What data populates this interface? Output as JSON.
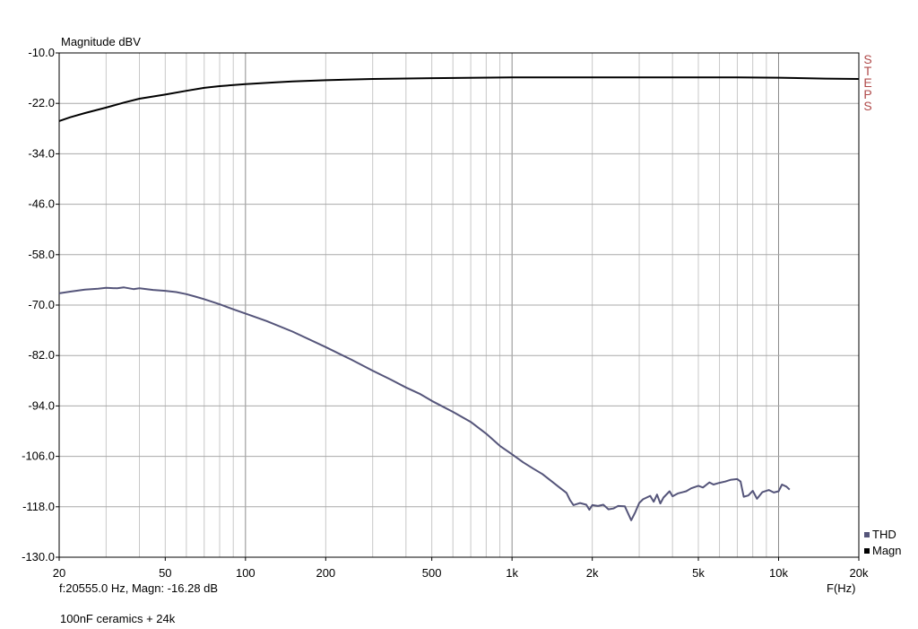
{
  "chart_data": {
    "type": "line",
    "title": "Magnitude dBV",
    "xlabel": "F(Hz)",
    "ylabel": "",
    "x_scale": "log",
    "xlim": [
      20,
      20000
    ],
    "ylim": [
      -130,
      -10
    ],
    "y_ticks": [
      "-10.0",
      "-22.0",
      "-34.0",
      "-46.0",
      "-58.0",
      "-70.0",
      "-82.0",
      "-94.0",
      "-106.0",
      "-118.0",
      "-130.0"
    ],
    "x_ticks": [
      {
        "value": 20,
        "label": "20"
      },
      {
        "value": 50,
        "label": "50"
      },
      {
        "value": 100,
        "label": "100"
      },
      {
        "value": 200,
        "label": "200"
      },
      {
        "value": 500,
        "label": "500"
      },
      {
        "value": 1000,
        "label": "1k"
      },
      {
        "value": 2000,
        "label": "2k"
      },
      {
        "value": 5000,
        "label": "5k"
      },
      {
        "value": 10000,
        "label": "10k"
      },
      {
        "value": 20000,
        "label": "20k"
      }
    ],
    "grid": true,
    "legend_position": "bottom-right",
    "series": [
      {
        "name": "THD",
        "color": "#55557a",
        "points": [
          [
            20,
            -67.2
          ],
          [
            22,
            -66.8
          ],
          [
            25,
            -66.3
          ],
          [
            28,
            -66.1
          ],
          [
            30,
            -65.9
          ],
          [
            33,
            -66.0
          ],
          [
            35,
            -65.8
          ],
          [
            38,
            -66.2
          ],
          [
            40,
            -66.0
          ],
          [
            45,
            -66.4
          ],
          [
            50,
            -66.6
          ],
          [
            55,
            -66.9
          ],
          [
            60,
            -67.4
          ],
          [
            65,
            -68.0
          ],
          [
            70,
            -68.6
          ],
          [
            80,
            -69.8
          ],
          [
            90,
            -71.0
          ],
          [
            100,
            -72.0
          ],
          [
            120,
            -73.8
          ],
          [
            150,
            -76.3
          ],
          [
            200,
            -80.0
          ],
          [
            250,
            -83.0
          ],
          [
            300,
            -85.6
          ],
          [
            350,
            -87.7
          ],
          [
            400,
            -89.6
          ],
          [
            450,
            -91.1
          ],
          [
            500,
            -92.8
          ],
          [
            600,
            -95.4
          ],
          [
            700,
            -97.8
          ],
          [
            800,
            -100.6
          ],
          [
            900,
            -103.5
          ],
          [
            1000,
            -105.5
          ],
          [
            1100,
            -107.4
          ],
          [
            1200,
            -108.9
          ],
          [
            1300,
            -110.2
          ],
          [
            1400,
            -111.8
          ],
          [
            1500,
            -113.3
          ],
          [
            1600,
            -114.7
          ],
          [
            1650,
            -116.4
          ],
          [
            1700,
            -117.6
          ],
          [
            1800,
            -117.1
          ],
          [
            1900,
            -117.5
          ],
          [
            1950,
            -118.7
          ],
          [
            2000,
            -117.6
          ],
          [
            2100,
            -117.8
          ],
          [
            2200,
            -117.5
          ],
          [
            2300,
            -118.6
          ],
          [
            2400,
            -118.4
          ],
          [
            2500,
            -117.8
          ],
          [
            2650,
            -117.9
          ],
          [
            2800,
            -121.2
          ],
          [
            2900,
            -119.3
          ],
          [
            3000,
            -117.1
          ],
          [
            3100,
            -116.2
          ],
          [
            3300,
            -115.4
          ],
          [
            3400,
            -116.8
          ],
          [
            3500,
            -115.1
          ],
          [
            3600,
            -117.2
          ],
          [
            3700,
            -115.8
          ],
          [
            3900,
            -114.3
          ],
          [
            4000,
            -115.5
          ],
          [
            4200,
            -114.8
          ],
          [
            4500,
            -114.3
          ],
          [
            4700,
            -113.6
          ],
          [
            5000,
            -113.0
          ],
          [
            5200,
            -113.4
          ],
          [
            5500,
            -112.2
          ],
          [
            5700,
            -112.7
          ],
          [
            6000,
            -112.3
          ],
          [
            6300,
            -112.0
          ],
          [
            6600,
            -111.6
          ],
          [
            7000,
            -111.4
          ],
          [
            7200,
            -112.0
          ],
          [
            7400,
            -115.6
          ],
          [
            7700,
            -115.3
          ],
          [
            8000,
            -114.2
          ],
          [
            8300,
            -116.1
          ],
          [
            8700,
            -114.5
          ],
          [
            9200,
            -114.0
          ],
          [
            9600,
            -114.6
          ],
          [
            10000,
            -114.3
          ],
          [
            10300,
            -112.7
          ],
          [
            10700,
            -113.2
          ],
          [
            11000,
            -113.9
          ]
        ]
      },
      {
        "name": "Magn",
        "color": "#000000",
        "points": [
          [
            20,
            -26.2
          ],
          [
            22,
            -25.3
          ],
          [
            25,
            -24.3
          ],
          [
            30,
            -23.0
          ],
          [
            35,
            -21.8
          ],
          [
            40,
            -20.9
          ],
          [
            50,
            -19.9
          ],
          [
            60,
            -19.0
          ],
          [
            70,
            -18.3
          ],
          [
            80,
            -17.9
          ],
          [
            100,
            -17.4
          ],
          [
            130,
            -17.0
          ],
          [
            150,
            -16.8
          ],
          [
            200,
            -16.5
          ],
          [
            300,
            -16.2
          ],
          [
            500,
            -16.0
          ],
          [
            1000,
            -15.8
          ],
          [
            2000,
            -15.8
          ],
          [
            5000,
            -15.8
          ],
          [
            7000,
            -15.8
          ],
          [
            10000,
            -15.9
          ],
          [
            15000,
            -16.1
          ],
          [
            20000,
            -16.2
          ]
        ]
      }
    ],
    "right_label": "STEPS",
    "readout": "f:20555.0 Hz, Magn: -16.28 dB",
    "note": "100nF ceramics + 24k"
  }
}
